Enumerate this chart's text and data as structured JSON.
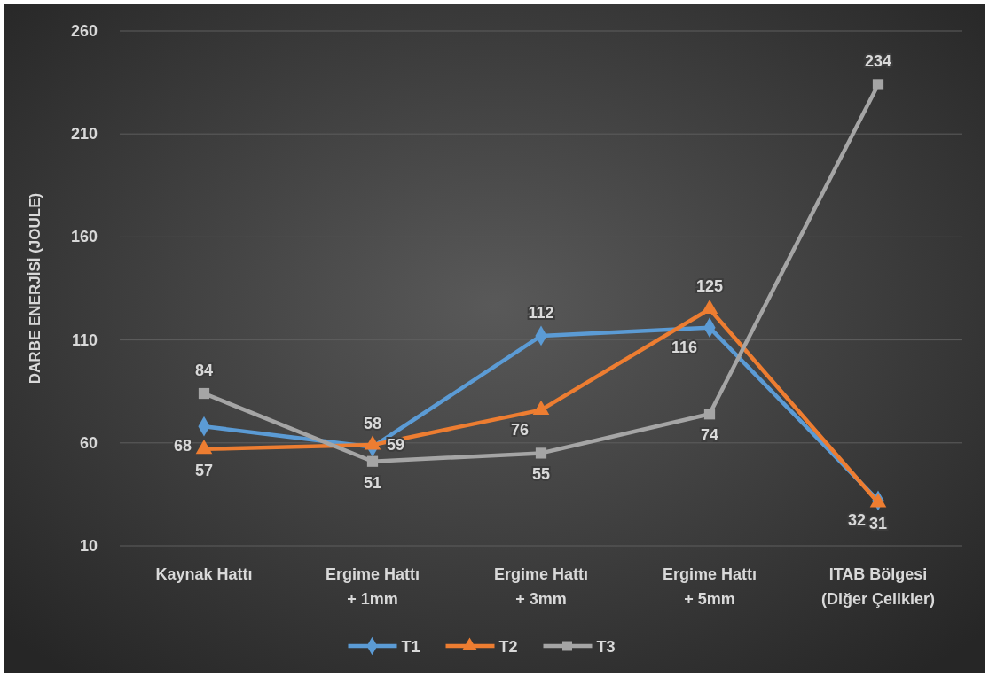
{
  "chart_data": {
    "type": "line",
    "ylabel": "DARBE ENERJİSİ (JOULE)",
    "categories": [
      "Kaynak Hattı",
      "Ergime Hattı\n+ 1mm",
      "Ergime Hattı\n+ 3mm",
      "Ergime Hattı\n+ 5mm",
      "ITAB Bölgesi\n(Diğer Çelikler)"
    ],
    "series": [
      {
        "name": "T1",
        "color": "#5b9bd5",
        "marker": "diamond",
        "values": [
          68,
          58,
          112,
          116,
          32
        ]
      },
      {
        "name": "T2",
        "color": "#ed7d31",
        "marker": "triangle",
        "values": [
          57,
          59,
          76,
          125,
          31
        ]
      },
      {
        "name": "T3",
        "color": "#a5a5a5",
        "marker": "square",
        "values": [
          84,
          51,
          55,
          74,
          234
        ]
      }
    ],
    "ylim": [
      10,
      260
    ],
    "yticks": [
      10,
      60,
      110,
      160,
      210,
      260
    ],
    "grid": "y",
    "legend": "bottom",
    "data_labels": true
  }
}
